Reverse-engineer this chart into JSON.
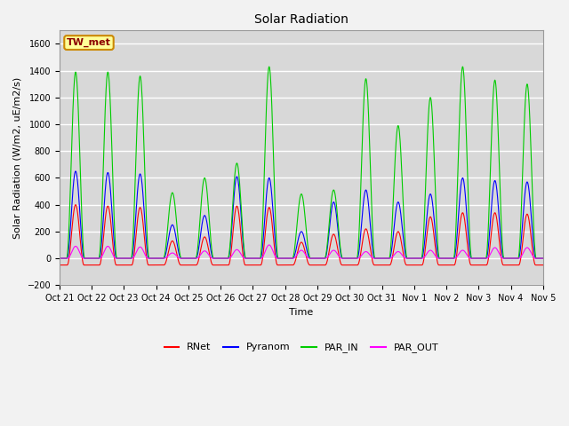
{
  "title": "Solar Radiation",
  "ylabel": "Solar Radiation (W/m2, uE/m2/s)",
  "xlabel": "Time",
  "ylim": [
    -200,
    1700
  ],
  "yticks": [
    -200,
    0,
    200,
    400,
    600,
    800,
    1000,
    1200,
    1400,
    1600
  ],
  "station_label": "TW_met",
  "line_colors": {
    "RNet": "#FF0000",
    "Pyranom": "#0000FF",
    "PAR_IN": "#00CC00",
    "PAR_OUT": "#FF00FF"
  },
  "background_color": "#D8D8D8",
  "legend_entries": [
    "RNet",
    "Pyranom",
    "PAR_IN",
    "PAR_OUT"
  ],
  "x_tick_labels": [
    "Oct 21",
    "Oct 22",
    "Oct 23",
    "Oct 24",
    "Oct 25",
    "Oct 26",
    "Oct 27",
    "Oct 28",
    "Oct 29",
    "Oct 30",
    "Oct 31",
    "Nov 1",
    "Nov 2",
    "Nov 3",
    "Nov 4",
    "Nov 5"
  ],
  "n_days": 15,
  "pts_per_day": 144,
  "day_peaks_PAR_IN": [
    1390,
    1390,
    1360,
    490,
    600,
    710,
    1430,
    480,
    510,
    1340,
    990,
    1200,
    1430,
    1330,
    1300
  ],
  "day_peaks_Pyranom": [
    650,
    640,
    630,
    250,
    320,
    610,
    600,
    200,
    420,
    510,
    420,
    480,
    600,
    580,
    570
  ],
  "day_peaks_RNet": [
    400,
    390,
    380,
    130,
    160,
    390,
    380,
    120,
    180,
    220,
    200,
    310,
    340,
    340,
    330
  ],
  "day_peaks_PAR_OUT": [
    90,
    90,
    85,
    40,
    55,
    65,
    100,
    60,
    60,
    50,
    50,
    60,
    60,
    80,
    80
  ],
  "night_RNet": -50
}
